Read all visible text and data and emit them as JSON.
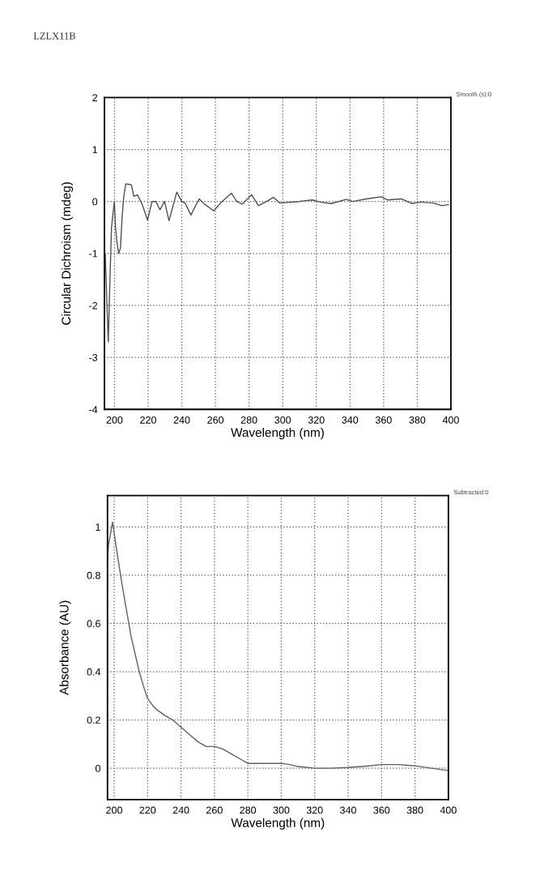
{
  "chart_data": [
    {
      "type": "line",
      "title": "LZLX11B",
      "xlabel": "Wavelength (nm)",
      "ylabel": "Circular Dichroism (mdeg)",
      "annotations": [
        "Smooth (s):0"
      ],
      "grid": true,
      "marker": "none",
      "line_style": "solid",
      "xlim": [
        194,
        400
      ],
      "xticks": [
        200,
        220,
        240,
        260,
        280,
        300,
        320,
        340,
        360,
        380,
        400
      ],
      "ylim": [
        -4,
        2
      ],
      "yticks": [
        -4,
        -3,
        -2,
        -1,
        0,
        1,
        2
      ],
      "series": [
        {
          "color": "#505050",
          "x": [
            194.5,
            195.5,
            196.3,
            197.2,
            198.2,
            199.9,
            200.6,
            201.5,
            202.5,
            203.5,
            204.5,
            205.5,
            206.7,
            208.5,
            210,
            211.5,
            213.6,
            216.4,
            219.6,
            222.3,
            224.7,
            227,
            229.7,
            232.4,
            237,
            240,
            242,
            245.4,
            250.3,
            253.5,
            259,
            263,
            269.5,
            272.7,
            275.9,
            281.5,
            285.6,
            290.4,
            294.4,
            298.4,
            309.6,
            317.6,
            322.4,
            328.9,
            337.7,
            341.7,
            349.7,
            358.5,
            362.5,
            370.5,
            376.9,
            381.8,
            389.8,
            394.6,
            398.6
          ],
          "values": [
            -1.0,
            -2.0,
            -2.7,
            -1.6,
            -0.5,
            0.0,
            -0.5,
            -0.8,
            -1.0,
            -0.9,
            -0.3,
            0.1,
            0.34,
            0.33,
            0.32,
            0.1,
            0.13,
            -0.05,
            -0.36,
            0.0,
            0.0,
            -0.16,
            0.0,
            -0.37,
            0.18,
            0.0,
            -0.03,
            -0.26,
            0.05,
            -0.05,
            -0.18,
            -0.03,
            0.16,
            0.0,
            -0.05,
            0.13,
            -0.08,
            0.0,
            0.08,
            -0.03,
            0.0,
            0.03,
            -0.01,
            -0.04,
            0.04,
            0.0,
            0.05,
            0.09,
            0.03,
            0.05,
            -0.04,
            -0.01,
            -0.03,
            -0.08,
            -0.06
          ]
        }
      ]
    },
    {
      "type": "line",
      "xlabel": "Wavelength (nm)",
      "ylabel": "Absorbance (AU)",
      "annotations": [
        "Subtracted:0"
      ],
      "grid": true,
      "marker": "none",
      "line_style": "solid",
      "xlim": [
        196,
        400
      ],
      "xticks": [
        200,
        220,
        240,
        260,
        280,
        300,
        320,
        340,
        360,
        380,
        400
      ],
      "ylim": [
        -0.13,
        1.13
      ],
      "yticks": [
        0,
        0.2,
        0.4,
        0.6,
        0.8,
        1
      ],
      "series": [
        {
          "color": "#606060",
          "x": [
            196,
            196.5,
            199,
            202,
            205,
            210,
            215,
            218,
            220,
            223,
            226,
            230,
            235,
            240,
            245,
            250,
            255,
            260,
            265,
            270,
            275,
            280,
            290,
            300,
            305,
            310,
            320,
            330,
            340,
            350,
            360,
            370,
            380,
            390,
            400
          ],
          "values": [
            0.86,
            0.92,
            1.02,
            0.88,
            0.75,
            0.55,
            0.4,
            0.33,
            0.29,
            0.26,
            0.24,
            0.22,
            0.2,
            0.17,
            0.14,
            0.11,
            0.09,
            0.09,
            0.08,
            0.06,
            0.04,
            0.02,
            0.02,
            0.02,
            0.015,
            0.007,
            0.0,
            0.0,
            0.003,
            0.008,
            0.015,
            0.015,
            0.01,
            0.0,
            -0.01
          ]
        }
      ]
    }
  ]
}
